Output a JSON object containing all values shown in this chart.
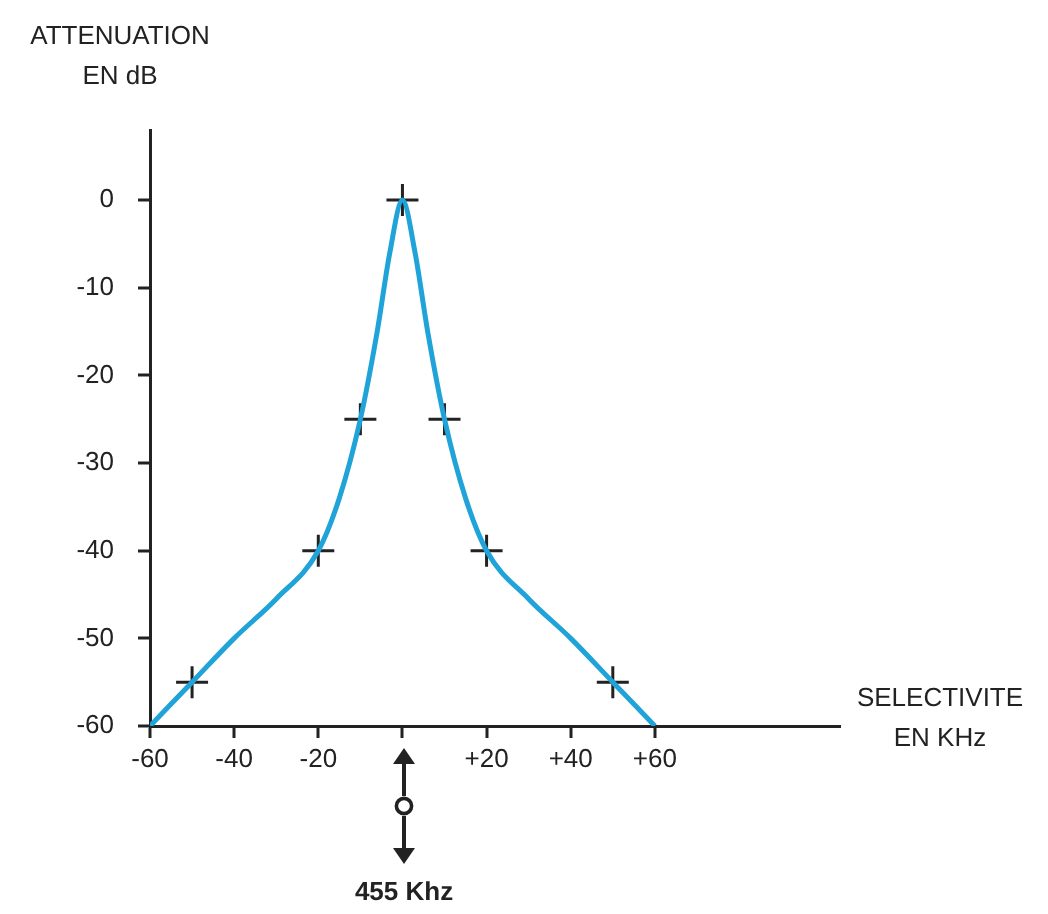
{
  "chart_data": {
    "type": "line",
    "xlabel": "SELECTIVITE EN KHz",
    "ylabel": "ATTENUATION EN dB",
    "xlim": [
      -60,
      104
    ],
    "ylim": [
      -60,
      8
    ],
    "xticks": [
      -60,
      -40,
      -20,
      {
        "value": 0,
        "label": null
      },
      {
        "value": 20,
        "label": "+20"
      },
      {
        "value": 40,
        "label": "+40"
      },
      {
        "value": 60,
        "label": "+60"
      }
    ],
    "yticks": [
      -60,
      -50,
      -40,
      -30,
      -20,
      -10,
      0
    ],
    "grid": false,
    "legend": false,
    "series": [
      {
        "type": "line",
        "marker": "none",
        "color": "#1fa3d8",
        "x": [
          -60,
          -55,
          -50,
          -40,
          -30,
          -20,
          -15,
          -10,
          -6,
          -3,
          0,
          3,
          6,
          10,
          15,
          20,
          30,
          40,
          50,
          55,
          60
        ],
        "values": [
          -60,
          -57.5,
          -55,
          -50,
          -45.5,
          -40,
          -34,
          -25,
          -15,
          -6,
          0,
          -6,
          -15,
          -25,
          -34,
          -40,
          -45.5,
          -50,
          -55,
          -57.5,
          -60
        ]
      },
      {
        "type": "scatter",
        "marker": "cross",
        "color": "#222222",
        "x": [
          -50,
          -20,
          -10,
          0,
          10,
          20,
          50
        ],
        "values": [
          -55,
          -40,
          -25,
          0,
          -25,
          -40,
          -55
        ]
      }
    ],
    "annotations": [
      "455 Khz"
    ]
  }
}
